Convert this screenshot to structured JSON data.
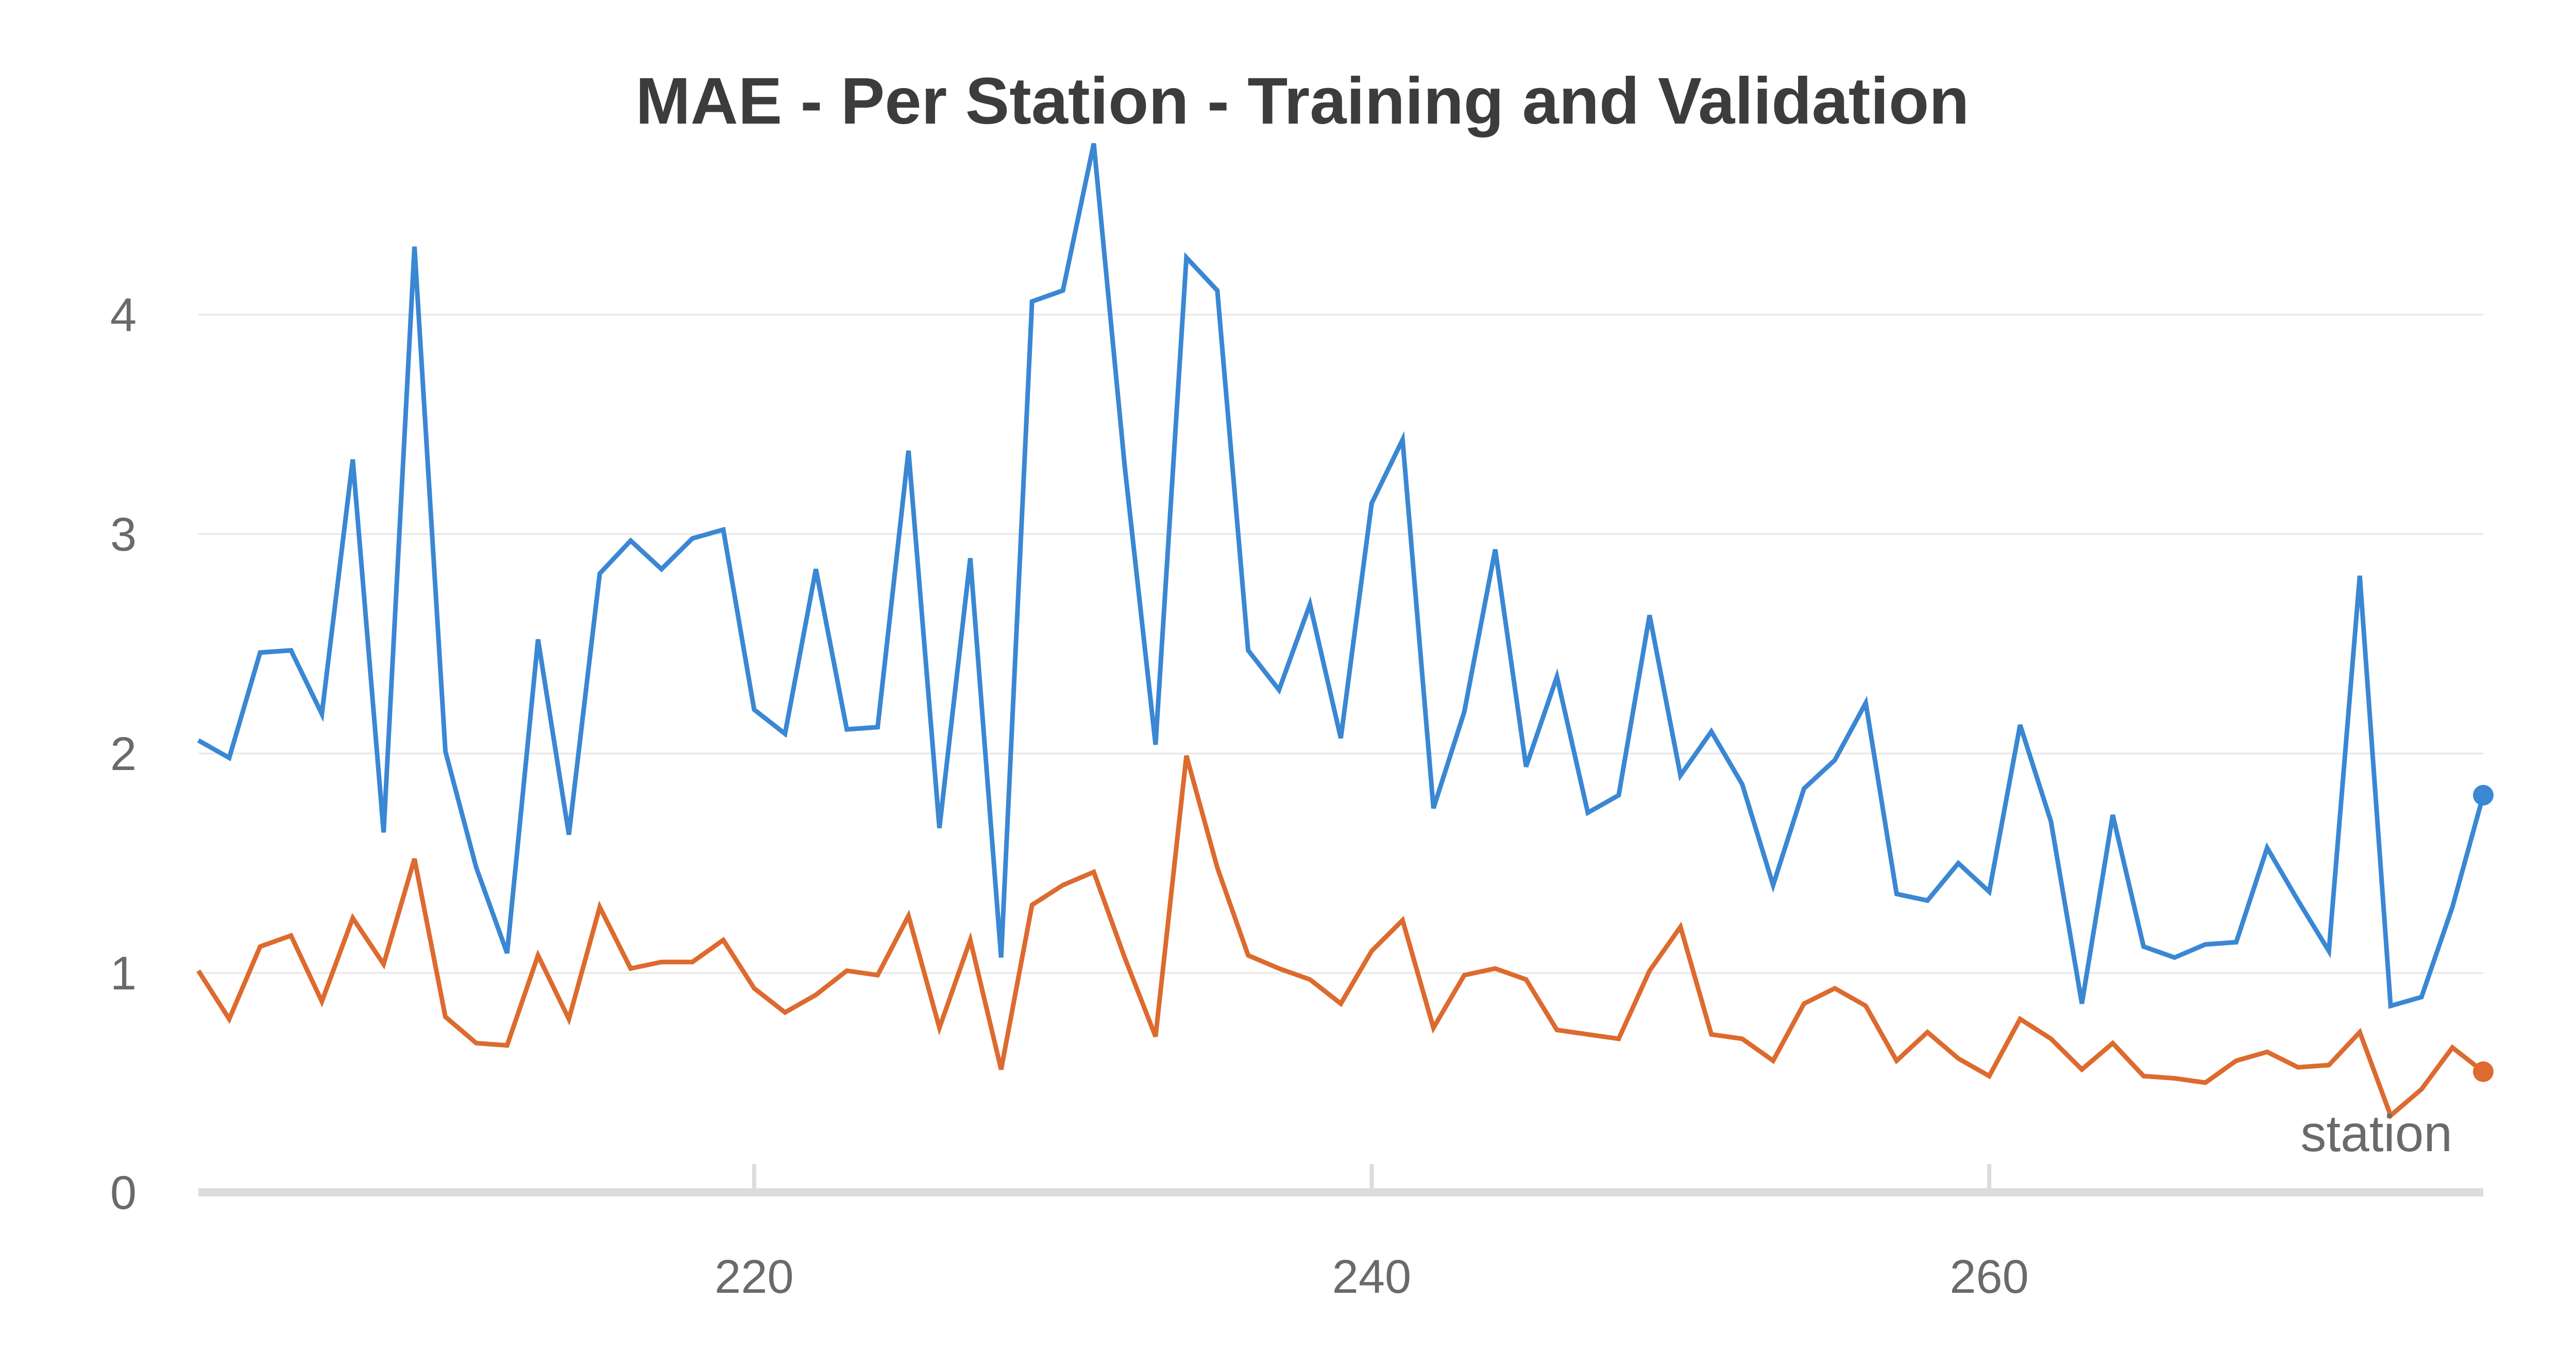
{
  "chart_data": {
    "type": "line",
    "title": "MAE - Per Station - Training and Validation",
    "xlabel": "station",
    "ylabel": "",
    "xlim": [
      202,
      276
    ],
    "ylim": [
      0,
      4.8
    ],
    "y_ticks": [
      0,
      1,
      2,
      3,
      4
    ],
    "x_ticks": [
      220,
      240,
      260
    ],
    "grid": "horizontal",
    "legend": "none",
    "x": [
      202,
      203,
      204,
      205,
      206,
      207,
      208,
      209,
      210,
      211,
      212,
      213,
      214,
      215,
      216,
      217,
      218,
      219,
      220,
      221,
      222,
      223,
      224,
      225,
      226,
      227,
      228,
      229,
      230,
      231,
      232,
      233,
      234,
      235,
      236,
      237,
      238,
      239,
      240,
      241,
      242,
      243,
      244,
      245,
      246,
      247,
      248,
      249,
      250,
      251,
      252,
      253,
      254,
      255,
      256,
      257,
      258,
      259,
      260,
      261,
      262,
      263,
      264,
      265,
      266,
      267,
      268,
      269,
      270,
      271,
      272,
      273,
      274,
      275,
      276
    ],
    "series": [
      {
        "color": "#3a87d3",
        "values": [
          2.06,
          1.98,
          2.46,
          2.47,
          2.18,
          3.34,
          1.64,
          4.31,
          2.01,
          1.48,
          1.09,
          2.52,
          1.63,
          2.82,
          2.97,
          2.84,
          2.98,
          3.02,
          2.2,
          2.09,
          2.84,
          2.11,
          2.12,
          3.38,
          1.66,
          2.89,
          1.07,
          4.06,
          4.11,
          4.78,
          3.31,
          2.04,
          4.26,
          4.11,
          2.47,
          2.29,
          2.68,
          2.07,
          3.14,
          3.43,
          1.75,
          2.19,
          2.93,
          1.94,
          2.35,
          1.73,
          1.81,
          2.63,
          1.9,
          2.1,
          1.86,
          1.4,
          1.84,
          1.97,
          2.23,
          1.36,
          1.33,
          1.5,
          1.37,
          2.13,
          1.69,
          0.86,
          1.72,
          1.12,
          1.07,
          1.13,
          1.14,
          1.57,
          1.33,
          1.1,
          2.81,
          0.85,
          0.89,
          1.3,
          1.81
        ]
      },
      {
        "color": "#dd6a2e",
        "values": [
          1.01,
          0.79,
          1.12,
          1.17,
          0.87,
          1.25,
          1.04,
          1.52,
          0.8,
          0.68,
          0.67,
          1.08,
          0.79,
          1.3,
          1.02,
          1.05,
          1.05,
          1.15,
          0.93,
          0.82,
          0.9,
          1.01,
          0.99,
          1.26,
          0.75,
          1.15,
          0.56,
          1.31,
          1.4,
          1.46,
          1.07,
          0.71,
          1.99,
          1.48,
          1.08,
          1.02,
          0.97,
          0.86,
          1.1,
          1.24,
          0.75,
          0.99,
          1.02,
          0.97,
          0.74,
          0.72,
          0.7,
          1.01,
          1.21,
          0.72,
          0.7,
          0.6,
          0.86,
          0.93,
          0.85,
          0.6,
          0.73,
          0.61,
          0.53,
          0.79,
          0.7,
          0.56,
          0.68,
          0.53,
          0.52,
          0.5,
          0.6,
          0.64,
          0.57,
          0.58,
          0.73,
          0.35,
          0.47,
          0.66,
          0.55
        ]
      }
    ]
  }
}
